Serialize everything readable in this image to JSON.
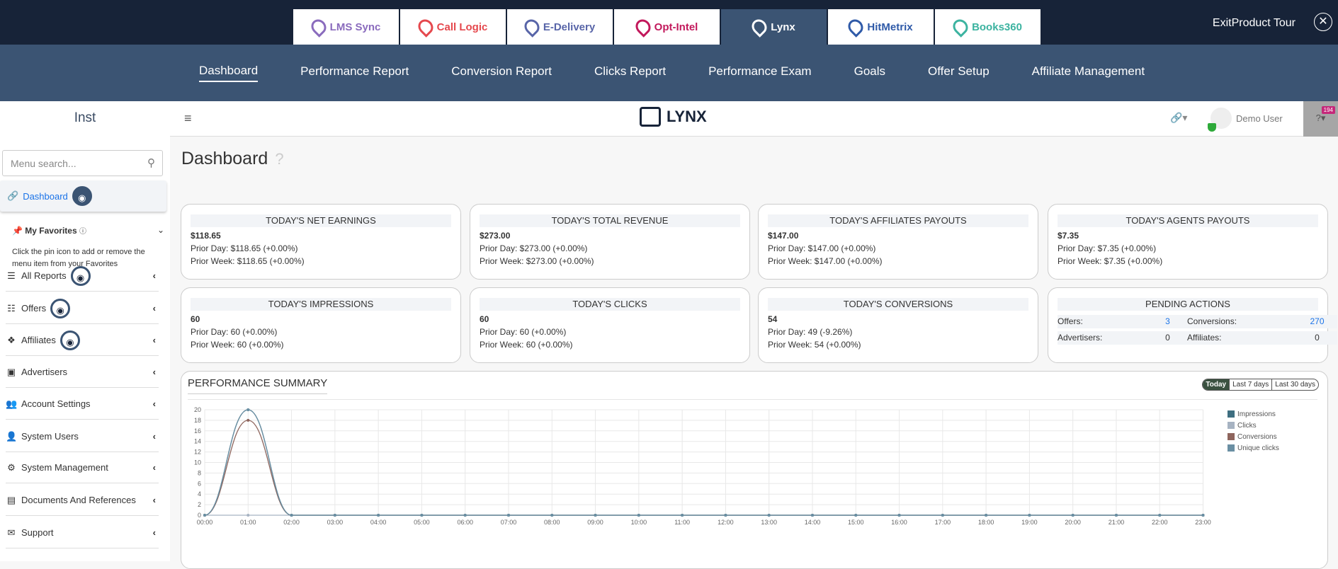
{
  "product_tabs": [
    {
      "label": "LMS Sync",
      "color": "#8a6bbd"
    },
    {
      "label": "Call Logic",
      "color": "#e5484d"
    },
    {
      "label": "E-Delivery",
      "color": "#5865a8"
    },
    {
      "label": "Opt-Intel",
      "color": "#c2185b"
    },
    {
      "label": "Lynx",
      "color": "#ffffff",
      "active": true
    },
    {
      "label": "HitMetrix",
      "color": "#2f5aa8"
    },
    {
      "label": "Books360",
      "color": "#3cb3a0"
    }
  ],
  "exit_tour": "ExitProduct Tour",
  "nav": [
    "Dashboard",
    "Performance Report",
    "Conversion Report",
    "Clicks Report",
    "Performance Exam",
    "Goals",
    "Offer Setup",
    "Affiliate Management"
  ],
  "sidebar": {
    "org": "Inst",
    "search_placeholder": "Menu search...",
    "dashboard": "Dashboard",
    "favorites_title": "My Favorites",
    "favorites_help": "Click the pin icon to add or remove the menu item from your Favorites",
    "items": [
      {
        "label": "All Reports",
        "icon": "list-icon",
        "eye": true
      },
      {
        "label": "Offers",
        "icon": "sitemap-icon",
        "eye": true
      },
      {
        "label": "Affiliates",
        "icon": "cubes-icon",
        "eye": true
      },
      {
        "label": "Advertisers",
        "icon": "briefcase-icon"
      },
      {
        "label": "Account Settings",
        "icon": "users-icon"
      },
      {
        "label": "System Users",
        "icon": "user-icon"
      },
      {
        "label": "System Management",
        "icon": "cogs-icon"
      },
      {
        "label": "Documents And References",
        "icon": "book-icon"
      },
      {
        "label": "Support",
        "icon": "envelope-icon"
      }
    ]
  },
  "header": {
    "logo": "LYNX",
    "user": "Demo User",
    "badge": "194"
  },
  "page_title": "Dashboard",
  "cards": [
    {
      "title": "TODAY'S NET EARNINGS",
      "value": "$118.65",
      "prior_day": "Prior Day: $118.65 (+0.00%)",
      "prior_week": "Prior Week: $118.65 (+0.00%)"
    },
    {
      "title": "TODAY'S TOTAL REVENUE",
      "value": "$273.00",
      "prior_day": "Prior Day: $273.00 (+0.00%)",
      "prior_week": "Prior Week: $273.00 (+0.00%)"
    },
    {
      "title": "TODAY'S AFFILIATES PAYOUTS",
      "value": "$147.00",
      "prior_day": "Prior Day: $147.00 (+0.00%)",
      "prior_week": "Prior Week: $147.00 (+0.00%)"
    },
    {
      "title": "TODAY'S AGENTS PAYOUTS",
      "value": "$7.35",
      "prior_day": "Prior Day: $7.35 (+0.00%)",
      "prior_week": "Prior Week: $7.35 (+0.00%)"
    },
    {
      "title": "TODAY'S IMPRESSIONS",
      "value": "60",
      "prior_day": "Prior Day: 60 (+0.00%)",
      "prior_week": "Prior Week: 60 (+0.00%)"
    },
    {
      "title": "TODAY'S CLICKS",
      "value": "60",
      "prior_day": "Prior Day: 60 (+0.00%)",
      "prior_week": "Prior Week: 60 (+0.00%)"
    },
    {
      "title": "TODAY'S CONVERSIONS",
      "value": "54",
      "prior_day": "Prior Day: 49 (-9.26%)",
      "prior_week": "Prior Week: 54 (+0.00%)"
    }
  ],
  "pending": {
    "title": "PENDING ACTIONS",
    "offers_label": "Offers:",
    "offers": "3",
    "conversions_label": "Conversions:",
    "conversions": "270",
    "advertisers_label": "Advertisers:",
    "advertisers": "0",
    "affiliates_label": "Affiliates:",
    "affiliates": "0"
  },
  "chart_title": "PERFORMANCE SUMMARY",
  "ranges": [
    "Today",
    "Last 7 days",
    "Last 30 days"
  ],
  "chart_data": {
    "type": "line",
    "x": [
      "00:00",
      "01:00",
      "02:00",
      "03:00",
      "04:00",
      "05:00",
      "06:00",
      "07:00",
      "08:00",
      "09:00",
      "10:00",
      "11:00",
      "12:00",
      "13:00",
      "14:00",
      "15:00",
      "16:00",
      "17:00",
      "18:00",
      "19:00",
      "20:00",
      "21:00",
      "22:00",
      "23:00"
    ],
    "ylim": [
      0,
      20
    ],
    "yticks": [
      0,
      2,
      4,
      6,
      8,
      10,
      12,
      14,
      16,
      18,
      20
    ],
    "grid": true,
    "legend": "right",
    "series": [
      {
        "name": "Impressions",
        "color": "#3e6e80",
        "values": [
          0,
          20,
          0,
          0,
          0,
          0,
          0,
          0,
          0,
          0,
          0,
          0,
          0,
          0,
          0,
          0,
          0,
          0,
          0,
          0,
          0,
          0,
          0,
          0
        ]
      },
      {
        "name": "Clicks",
        "color": "#a7b3c2",
        "values": [
          0,
          0,
          0,
          0,
          0,
          0,
          0,
          0,
          0,
          0,
          0,
          0,
          0,
          0,
          0,
          0,
          0,
          0,
          0,
          0,
          0,
          0,
          0,
          0
        ]
      },
      {
        "name": "Conversions",
        "color": "#8e655d",
        "values": [
          0,
          18,
          0,
          0,
          0,
          0,
          0,
          0,
          0,
          0,
          0,
          0,
          0,
          0,
          0,
          0,
          0,
          0,
          0,
          0,
          0,
          0,
          0,
          0
        ]
      },
      {
        "name": "Unique clicks",
        "color": "#6a8fa3",
        "values": [
          0,
          20,
          0,
          0,
          0,
          0,
          0,
          0,
          0,
          0,
          0,
          0,
          0,
          0,
          0,
          0,
          0,
          0,
          0,
          0,
          0,
          0,
          0,
          0
        ]
      }
    ]
  }
}
